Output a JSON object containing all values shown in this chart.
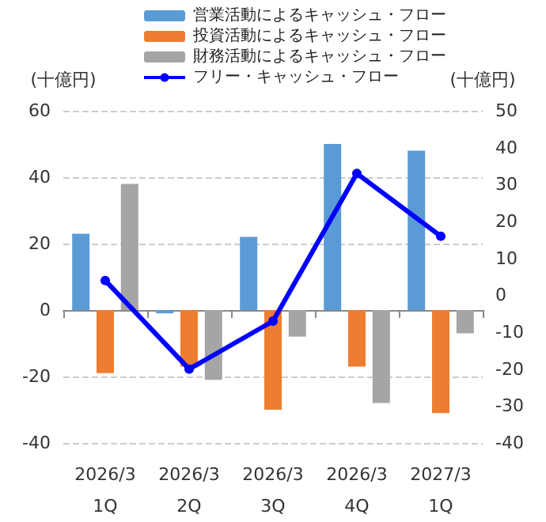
{
  "chart_data": {
    "type": "bar",
    "ylabel": "(十億円)",
    "y2label": "(十億円)",
    "categories": [
      "2026/3\n1Q",
      "2026/3\n2Q",
      "2026/3\n3Q",
      "2026/3\n4Q",
      "2027/3\n1Q"
    ],
    "series": [
      {
        "name": "営業活動によるキャッシュ・フロー",
        "color": "#5b9bd5",
        "values": [
          23,
          -1,
          22,
          50,
          48
        ]
      },
      {
        "name": "投資活動によるキャッシュ・フロー",
        "color": "#ed7d31",
        "values": [
          -19,
          -17,
          -30,
          -17,
          -31
        ]
      },
      {
        "name": "財務活動によるキャッシュ・フロー",
        "color": "#a5a5a5",
        "values": [
          38,
          -21,
          -8,
          -28,
          -7
        ]
      },
      {
        "name": "フリー・キャッシュ・フロー",
        "color": "#0000ff",
        "type": "line",
        "axis": "y2",
        "marker": "circle",
        "values": [
          4,
          -20,
          -7,
          33,
          16
        ]
      }
    ],
    "ylim": [
      -40,
      60
    ],
    "yticks": [
      -40,
      -20,
      0,
      20,
      40,
      60
    ],
    "y2lim": [
      -40,
      50
    ],
    "y2ticks": [
      -40,
      -30,
      -20,
      -10,
      0,
      10,
      20,
      30,
      40,
      50
    ],
    "grid": "y",
    "legend": "top"
  }
}
